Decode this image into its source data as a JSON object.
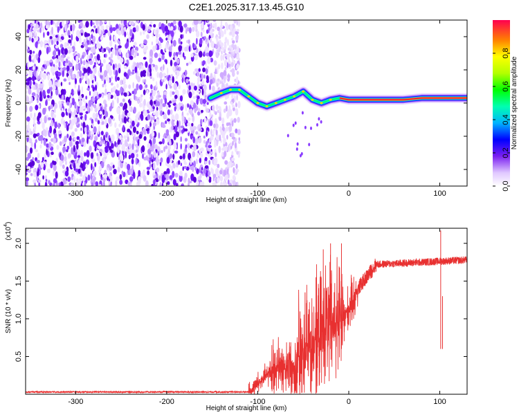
{
  "title": "C2E1.2025.317.13.45.G10",
  "chart_data": [
    {
      "type": "heatmap",
      "name": "spectrogram",
      "xlabel": "Height of straight line (km)",
      "ylabel": "Frequency (Hz)",
      "xlim": [
        -355,
        130
      ],
      "ylim": [
        -50,
        50
      ],
      "xticks": [
        -300,
        -200,
        -100,
        0,
        100
      ],
      "yticks": [
        -40,
        -20,
        0,
        20,
        40
      ],
      "noise_region_x": [
        -355,
        -120
      ],
      "signal_trace": [
        {
          "x": -152,
          "y": 3
        },
        {
          "x": -140,
          "y": 6
        },
        {
          "x": -130,
          "y": 8
        },
        {
          "x": -120,
          "y": 8
        },
        {
          "x": -110,
          "y": 4
        },
        {
          "x": -100,
          "y": 0
        },
        {
          "x": -90,
          "y": -2
        },
        {
          "x": -80,
          "y": 0
        },
        {
          "x": -70,
          "y": 2
        },
        {
          "x": -60,
          "y": 4
        },
        {
          "x": -50,
          "y": 7
        },
        {
          "x": -40,
          "y": 2
        },
        {
          "x": -30,
          "y": 0
        },
        {
          "x": -20,
          "y": 2
        },
        {
          "x": -10,
          "y": 3
        },
        {
          "x": 0,
          "y": 2
        },
        {
          "x": 20,
          "y": 2
        },
        {
          "x": 60,
          "y": 2
        },
        {
          "x": 80,
          "y": 3
        },
        {
          "x": 100,
          "y": 3
        },
        {
          "x": 130,
          "y": 3
        }
      ],
      "colorbar": {
        "label": "Normalized spectral amplitude",
        "range": [
          0,
          1
        ],
        "ticks": [
          "0.0",
          "0.2",
          "0.4",
          "0.6",
          "0.8"
        ]
      }
    },
    {
      "type": "line",
      "name": "snr",
      "xlabel": "Height of straight line (km)",
      "ylabel": "SNR (10 * v/v)",
      "y_multiplier": "(x10",
      "y_exponent": "4",
      "y_multiplier_close": ")",
      "xlim": [
        -355,
        130
      ],
      "ylim": [
        0,
        2.2
      ],
      "xticks": [
        -300,
        -200,
        -100,
        0,
        100
      ],
      "yticks": [
        "0.5",
        "1.0",
        "1.5",
        "2.0"
      ],
      "color": "#e83030",
      "segments": [
        {
          "x0": -355,
          "x1": -110,
          "base": 0.03,
          "jitter": 0.01
        },
        {
          "x0": -110,
          "x1": -85,
          "base": 0.03,
          "rise_to": 0.3,
          "jitter": 0.2
        },
        {
          "x0": -85,
          "x1": -60,
          "base": 0.3,
          "rise_to": 0.4,
          "jitter": 0.5
        },
        {
          "x0": -60,
          "x1": -25,
          "base": 0.4,
          "rise_to": 0.9,
          "jitter": 1.0
        },
        {
          "x0": -25,
          "x1": -5,
          "base": 0.9,
          "rise_to": 1.0,
          "jitter": 1.1
        },
        {
          "x0": -5,
          "x1": 10,
          "base": 1.0,
          "rise_to": 1.4,
          "jitter": 0.4
        },
        {
          "x0": 10,
          "x1": 30,
          "base": 1.4,
          "rise_to": 1.72,
          "jitter": 0.1
        },
        {
          "x0": 30,
          "x1": 130,
          "base": 1.72,
          "rise_to": 1.78,
          "jitter": 0.05
        }
      ],
      "spikes": [
        {
          "x": -28,
          "y": 1.92
        },
        {
          "x": -20,
          "y": 2.0
        },
        {
          "x": -8,
          "y": 2.0
        },
        {
          "x": -48,
          "y": 1.35
        },
        {
          "x": -36,
          "y": 1.55
        },
        {
          "x": 101,
          "y": 2.17
        },
        {
          "x": 103,
          "y": 1.3
        }
      ]
    }
  ]
}
